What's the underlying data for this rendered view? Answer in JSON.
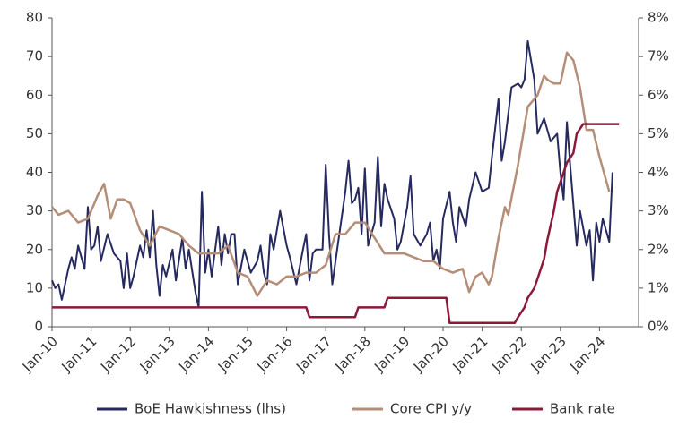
{
  "chart_data": {
    "type": "line",
    "xlim": [
      "2010-01",
      "2025-01"
    ],
    "xticks": [
      {
        "value": "2010-01",
        "label": "Jan-10"
      },
      {
        "value": "2011-01",
        "label": "Jan-11"
      },
      {
        "value": "2012-01",
        "label": "Jan-12"
      },
      {
        "value": "2013-01",
        "label": "Jan-13"
      },
      {
        "value": "2014-01",
        "label": "Jan-14"
      },
      {
        "value": "2015-01",
        "label": "Jan-15"
      },
      {
        "value": "2016-01",
        "label": "Jan-16"
      },
      {
        "value": "2017-01",
        "label": "Jan-17"
      },
      {
        "value": "2018-01",
        "label": "Jan-18"
      },
      {
        "value": "2019-01",
        "label": "Jan-19"
      },
      {
        "value": "2020-01",
        "label": "Jan-20"
      },
      {
        "value": "2021-01",
        "label": "Jan-21"
      },
      {
        "value": "2022-01",
        "label": "Jan-22"
      },
      {
        "value": "2023-01",
        "label": "Jan-23"
      },
      {
        "value": "2024-01",
        "label": "Jan-24"
      }
    ],
    "ylim": [
      0,
      80
    ],
    "yticks": [
      0,
      10,
      20,
      30,
      40,
      50,
      60,
      70,
      80
    ],
    "y2lim": [
      0,
      8
    ],
    "y2ticks": [
      {
        "value": 0,
        "label": "0%"
      },
      {
        "value": 1,
        "label": "1%"
      },
      {
        "value": 2,
        "label": "2%"
      },
      {
        "value": 3,
        "label": "3%"
      },
      {
        "value": 4,
        "label": "4%"
      },
      {
        "value": 5,
        "label": "5%"
      },
      {
        "value": 6,
        "label": "6%"
      },
      {
        "value": 7,
        "label": "7%"
      },
      {
        "value": 8,
        "label": "8%"
      }
    ],
    "legend": "bottom",
    "series": [
      {
        "name": "BoE Hawkishness (lhs)",
        "color": "#262a5e",
        "axis": "y",
        "x": [
          "2010-01",
          "2010-02",
          "2010-03",
          "2010-04",
          "2010-06",
          "2010-07",
          "2010-08",
          "2010-09",
          "2010-11",
          "2010-12",
          "2011-01",
          "2011-02",
          "2011-03",
          "2011-04",
          "2011-06",
          "2011-08",
          "2011-10",
          "2011-11",
          "2011-12",
          "2012-01",
          "2012-02",
          "2012-04",
          "2012-05",
          "2012-06",
          "2012-07",
          "2012-08",
          "2012-09",
          "2012-10",
          "2012-11",
          "2012-12",
          "2013-02",
          "2013-03",
          "2013-05",
          "2013-06",
          "2013-07",
          "2013-09",
          "2013-10",
          "2013-11",
          "2013-12",
          "2014-01",
          "2014-02",
          "2014-04",
          "2014-05",
          "2014-06",
          "2014-07",
          "2014-08",
          "2014-09",
          "2014-10",
          "2014-12",
          "2015-02",
          "2015-04",
          "2015-05",
          "2015-06",
          "2015-07",
          "2015-08",
          "2015-09",
          "2015-11",
          "2016-01",
          "2016-02",
          "2016-04",
          "2016-06",
          "2016-07",
          "2016-08",
          "2016-09",
          "2016-10",
          "2016-12",
          "2017-01",
          "2017-02",
          "2017-03",
          "2017-05",
          "2017-07",
          "2017-08",
          "2017-09",
          "2017-10",
          "2017-11",
          "2017-12",
          "2018-01",
          "2018-02",
          "2018-04",
          "2018-05",
          "2018-06",
          "2018-07",
          "2018-08",
          "2018-10",
          "2018-11",
          "2018-12",
          "2019-02",
          "2019-03",
          "2019-04",
          "2019-06",
          "2019-08",
          "2019-09",
          "2019-10",
          "2019-11",
          "2019-12",
          "2020-01",
          "2020-03",
          "2020-04",
          "2020-05",
          "2020-06",
          "2020-08",
          "2020-09",
          "2020-11",
          "2021-01",
          "2021-03",
          "2021-04",
          "2021-06",
          "2021-07",
          "2021-08",
          "2021-10",
          "2021-12",
          "2022-01",
          "2022-02",
          "2022-03",
          "2022-05",
          "2022-06",
          "2022-08",
          "2022-10",
          "2022-12",
          "2023-01",
          "2023-02",
          "2023-03",
          "2023-04",
          "2023-06",
          "2023-07",
          "2023-09",
          "2023-10",
          "2023-11",
          "2023-12",
          "2024-01",
          "2024-02",
          "2024-04",
          "2024-05"
        ],
        "values": [
          12,
          10,
          11,
          7,
          15,
          18,
          15,
          21,
          15,
          31,
          20,
          21,
          26,
          17,
          24,
          19,
          17,
          10,
          19,
          10,
          13,
          21,
          18,
          25,
          18,
          30,
          16,
          8,
          16,
          13,
          20,
          12,
          23,
          15,
          20,
          9,
          5,
          35,
          14,
          20,
          13,
          26,
          16,
          24,
          19,
          24,
          24,
          11,
          20,
          14,
          17,
          21,
          14,
          11,
          24,
          20,
          30,
          21,
          18,
          11,
          20,
          24,
          12,
          19,
          20,
          20,
          42,
          24,
          11,
          23,
          35,
          43,
          32,
          33,
          36,
          24,
          41,
          21,
          27,
          44,
          26,
          37,
          33,
          28,
          20,
          22,
          31,
          39,
          24,
          21,
          24,
          27,
          17,
          20,
          15,
          28,
          35,
          27,
          22,
          31,
          26,
          33,
          40,
          35,
          36,
          44,
          59,
          43,
          48,
          62,
          63,
          62,
          64,
          74,
          64,
          50,
          54,
          48,
          50,
          40,
          33,
          53,
          42,
          21,
          30,
          21,
          25,
          12,
          27,
          22,
          28,
          22,
          40
        ]
      },
      {
        "name": "Core CPI y/y",
        "color": "#b58e78",
        "axis": "y2",
        "x": [
          "2010-01",
          "2010-03",
          "2010-06",
          "2010-09",
          "2010-12",
          "2011-03",
          "2011-05",
          "2011-07",
          "2011-09",
          "2011-11",
          "2012-01",
          "2012-04",
          "2012-07",
          "2012-10",
          "2013-01",
          "2013-04",
          "2013-07",
          "2013-10",
          "2014-01",
          "2014-04",
          "2014-07",
          "2014-10",
          "2015-01",
          "2015-04",
          "2015-07",
          "2015-10",
          "2016-01",
          "2016-04",
          "2016-07",
          "2016-10",
          "2017-01",
          "2017-04",
          "2017-07",
          "2017-10",
          "2018-01",
          "2018-04",
          "2018-07",
          "2018-10",
          "2019-01",
          "2019-04",
          "2019-07",
          "2019-10",
          "2020-01",
          "2020-04",
          "2020-07",
          "2020-09",
          "2020-11",
          "2021-01",
          "2021-03",
          "2021-04",
          "2021-06",
          "2021-08",
          "2021-09",
          "2021-12",
          "2022-03",
          "2022-06",
          "2022-08",
          "2022-09",
          "2022-11",
          "2023-01",
          "2023-03",
          "2023-05",
          "2023-07",
          "2023-09",
          "2023-11",
          "2024-01",
          "2024-04"
        ],
        "values": [
          3.1,
          2.9,
          3.0,
          2.7,
          2.8,
          3.4,
          3.7,
          2.8,
          3.3,
          3.3,
          3.2,
          2.5,
          2.1,
          2.6,
          2.5,
          2.4,
          2.1,
          1.9,
          1.9,
          1.9,
          2.1,
          1.4,
          1.3,
          0.8,
          1.2,
          1.1,
          1.3,
          1.3,
          1.4,
          1.4,
          1.6,
          2.4,
          2.4,
          2.7,
          2.7,
          2.3,
          1.9,
          1.9,
          1.9,
          1.8,
          1.7,
          1.7,
          1.5,
          1.4,
          1.5,
          0.9,
          1.3,
          1.4,
          1.1,
          1.3,
          2.3,
          3.1,
          2.9,
          4.2,
          5.7,
          6.0,
          6.5,
          6.4,
          6.3,
          6.3,
          7.1,
          6.9,
          6.2,
          5.1,
          5.1,
          4.4,
          3.5
        ]
      },
      {
        "name": "Bank rate",
        "color": "#8b1a3a",
        "axis": "y2",
        "x": [
          "2010-01",
          "2016-07",
          "2016-08",
          "2017-10",
          "2017-11",
          "2018-07",
          "2018-08",
          "2020-02",
          "2020-03",
          "2021-11",
          "2021-12",
          "2022-02",
          "2022-03",
          "2022-05",
          "2022-06",
          "2022-08",
          "2022-09",
          "2022-11",
          "2022-12",
          "2023-02",
          "2023-03",
          "2023-05",
          "2023-06",
          "2023-08",
          "2024-07"
        ],
        "values": [
          0.5,
          0.5,
          0.25,
          0.25,
          0.5,
          0.5,
          0.75,
          0.75,
          0.1,
          0.1,
          0.25,
          0.5,
          0.75,
          1.0,
          1.25,
          1.75,
          2.25,
          3.0,
          3.5,
          4.0,
          4.25,
          4.5,
          5.0,
          5.25,
          5.25
        ]
      }
    ]
  }
}
